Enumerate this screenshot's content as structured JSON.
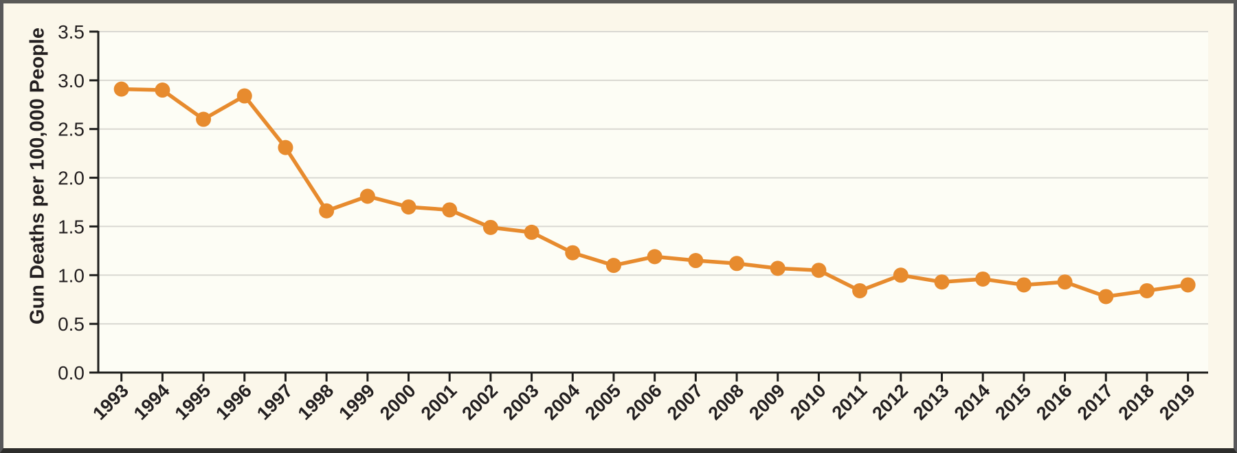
{
  "chart_data": {
    "type": "line",
    "ylabel": "Gun Deaths per 100,000 People",
    "xlabel": "",
    "x": [
      1993,
      1994,
      1995,
      1996,
      1997,
      1998,
      1999,
      2000,
      2001,
      2002,
      2003,
      2004,
      2005,
      2006,
      2007,
      2008,
      2009,
      2010,
      2011,
      2012,
      2013,
      2014,
      2015,
      2016,
      2017,
      2018,
      2019
    ],
    "series": [
      {
        "name": "Gun deaths per 100,000 people",
        "values": [
          2.91,
          2.9,
          2.6,
          2.84,
          2.31,
          1.66,
          1.81,
          1.7,
          1.67,
          1.49,
          1.44,
          1.23,
          1.1,
          1.19,
          1.15,
          1.12,
          1.07,
          1.05,
          0.84,
          1.0,
          0.93,
          0.96,
          0.9,
          0.93,
          0.78,
          0.84,
          0.9
        ]
      }
    ],
    "ylim": [
      0.0,
      3.5
    ],
    "yticks": [
      0.0,
      0.5,
      1.0,
      1.5,
      2.0,
      2.5,
      3.0,
      3.5
    ],
    "ytick_labels": [
      "0.0",
      "0.5",
      "1.0",
      "1.5",
      "2.0",
      "2.5",
      "3.0",
      "3.5"
    ],
    "xtick_rotation_deg": 45,
    "grid": true,
    "legend_position": "none",
    "colors": {
      "line": "#e78b2e",
      "marker": "#e78b2e",
      "grid": "#d9d8d2",
      "axis": "#1d1d1b",
      "text": "#231f20",
      "plot_background": "#fdfdf5",
      "page_background": "#fbf7ea",
      "frame": "#58585a"
    }
  }
}
